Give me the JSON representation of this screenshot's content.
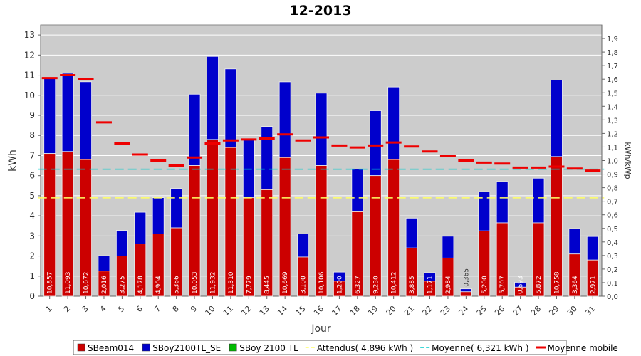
{
  "chart_data": {
    "type": "bar",
    "title": "12-2013",
    "xlabel": "Jour",
    "ylabel": "kWh",
    "y2label": "kWh/kWp",
    "ylim": [
      0,
      13.5
    ],
    "y2lim": [
      0,
      2.0
    ],
    "yticks": [
      0,
      1,
      2,
      3,
      4,
      5,
      6,
      7,
      8,
      9,
      10,
      11,
      12,
      13
    ],
    "y2ticks": [
      "0,0",
      "0,1",
      "0,2",
      "0,3",
      "0,4",
      "0,5",
      "0,6",
      "0,7",
      "0,8",
      "0,9",
      "1,0",
      "1,1",
      "1,2",
      "1,3",
      "1,4",
      "1,5",
      "1,6",
      "1,7",
      "1,8",
      "1,9"
    ],
    "categories": [
      "1",
      "2",
      "3",
      "4",
      "5",
      "6",
      "7",
      "8",
      "9",
      "10",
      "11",
      "12",
      "13",
      "14",
      "15",
      "16",
      "17",
      "18",
      "19",
      "20",
      "21",
      "22",
      "23",
      "24",
      "25",
      "26",
      "27",
      "28",
      "29",
      "30",
      "31"
    ],
    "series": [
      {
        "name": "SBeam014",
        "color": "#cc0000",
        "type": "bar",
        "values": [
          7.1,
          7.2,
          6.8,
          1.25,
          2.0,
          2.6,
          3.1,
          3.4,
          6.5,
          7.8,
          7.4,
          4.9,
          5.3,
          6.9,
          1.95,
          6.5,
          0.75,
          4.2,
          6.0,
          6.8,
          2.4,
          0.75,
          1.9,
          0.22,
          3.25,
          3.65,
          0.45,
          3.65,
          6.95,
          2.1,
          1.8
        ]
      },
      {
        "name": "SBoy2100TL_SE",
        "color": "#0000cc",
        "type": "bar",
        "values": [
          3.757,
          3.893,
          3.872,
          0.766,
          1.275,
          1.578,
          1.804,
          1.966,
          3.553,
          4.132,
          3.91,
          2.879,
          3.145,
          3.769,
          1.15,
          3.606,
          0.45,
          2.127,
          3.23,
          3.612,
          1.485,
          0.421,
          1.084,
          0.145,
          1.95,
          2.057,
          0.243,
          2.222,
          3.808,
          1.264,
          1.171
        ]
      },
      {
        "name": "SBoy 2100 TL",
        "color": "#00bb00",
        "type": "bar",
        "values": [
          0,
          0,
          0,
          0,
          0,
          0,
          0,
          0,
          0,
          0,
          0,
          0,
          0,
          0,
          0,
          0,
          0,
          0,
          0,
          0,
          0,
          0,
          0,
          0,
          0,
          0,
          0,
          0,
          0,
          0,
          0
        ]
      },
      {
        "name": "Attendus( 4,896 kWh )",
        "color": "#ffff66",
        "type": "line",
        "value": 4.896
      },
      {
        "name": "Moyenne( 6,321 kWh )",
        "color": "#00cccc",
        "type": "line",
        "value": 6.321
      },
      {
        "name": "Moyenne mobile",
        "color": "#ee0000",
        "type": "step",
        "values": [
          10.857,
          11.0,
          10.8,
          8.65,
          7.6,
          7.05,
          6.75,
          6.5,
          6.9,
          7.6,
          7.75,
          7.8,
          7.85,
          8.05,
          7.75,
          7.9,
          7.5,
          7.4,
          7.5,
          7.65,
          7.45,
          7.2,
          7.0,
          6.75,
          6.65,
          6.6,
          6.4,
          6.4,
          6.45,
          6.35,
          6.25
        ]
      }
    ],
    "data_labels": [
      "10,857",
      "11,093",
      "10,672",
      "2,016",
      "3,275",
      "4,178",
      "4,904",
      "5,366",
      "10,053",
      "11,932",
      "11,310",
      "7,779",
      "8,445",
      "10,669",
      "3,100",
      "10,106",
      "1,200",
      "6,327",
      "9,230",
      "10,412",
      "3,885",
      "1,171",
      "2,984",
      "0,365",
      "5,200",
      "5,707",
      "0,693",
      "5,872",
      "10,758",
      "3,364",
      "2,971"
    ],
    "grid": true,
    "legend_position": "bottom",
    "plot_background": "#cccccc"
  }
}
